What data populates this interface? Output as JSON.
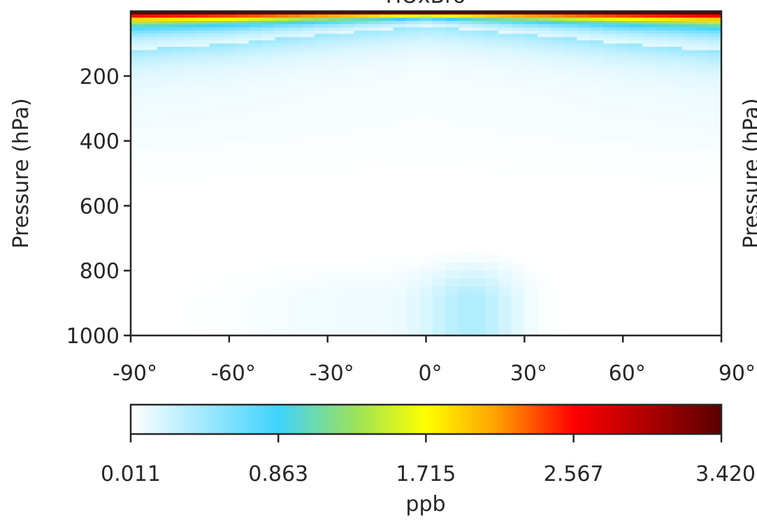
{
  "chart_data": {
    "type": "heatmap",
    "title": "HOxBro",
    "xlabel": "",
    "ylabel": "Pressure (hPa)",
    "right_panel_ylabel": "Pressure (hPa)",
    "x_ticks": [
      "-90°",
      "-60°",
      "-30°",
      "0°",
      "30°",
      "60°",
      "90°"
    ],
    "x_tick_values": [
      -90,
      -60,
      -30,
      0,
      30,
      60,
      90
    ],
    "xlim": [
      -90,
      90
    ],
    "y_ticks": [
      "200",
      "400",
      "600",
      "800",
      "1000"
    ],
    "y_tick_values": [
      200,
      400,
      600,
      800,
      1000
    ],
    "ylim": [
      1000,
      0
    ],
    "colorbar": {
      "label": "ppb",
      "ticks": [
        "0.011",
        "0.863",
        "1.715",
        "2.567",
        "3.420"
      ],
      "tick_values": [
        0.011,
        0.863,
        1.715,
        2.567,
        3.42
      ],
      "range": [
        0.011,
        3.42
      ],
      "colormap_stops": [
        {
          "v": 0.0,
          "color": "#ffffff"
        },
        {
          "v": 0.25,
          "color": "#3fd3fd"
        },
        {
          "v": 0.38,
          "color": "#9be25a"
        },
        {
          "v": 0.5,
          "color": "#ffff00"
        },
        {
          "v": 0.62,
          "color": "#ffa000"
        },
        {
          "v": 0.75,
          "color": "#ff0000"
        },
        {
          "v": 1.0,
          "color": "#5a0000"
        }
      ]
    },
    "field_description": {
      "lat_step_deg": 4,
      "top_layer_max_ppb": 3.42,
      "tropopause_pressure_hPa_by_lat": {
        "-90": 120,
        "-60": 100,
        "-30": 70,
        "0": 45,
        "30": 70,
        "60": 100,
        "90": 125
      },
      "surface_enhancement": {
        "center_lat": 14,
        "max_ppb": 0.32,
        "top_pressure_hPa": 820
      }
    }
  }
}
